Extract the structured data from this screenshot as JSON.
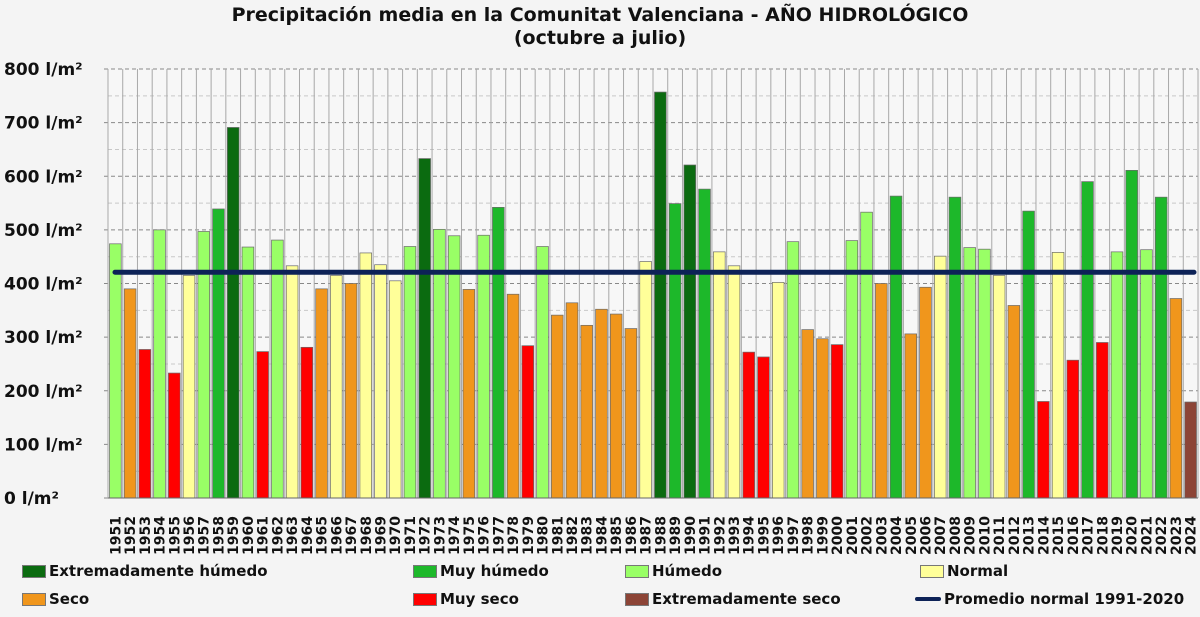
{
  "chart_data": {
    "type": "bar",
    "title": "Precipitación media en la Comunitat Valenciana - AÑO HIDROLÓGICO",
    "subtitle": "(octubre a julio)",
    "xlabel": "",
    "ylabel": "",
    "ylim": [
      0,
      800
    ],
    "yticks": [
      0,
      100,
      200,
      300,
      400,
      500,
      600,
      700,
      800
    ],
    "ytick_unit": " l/m²",
    "grid": true,
    "legend_placement": "bottom",
    "reference_line": {
      "name": "Promedio normal 1991-2020",
      "value": 421,
      "color": "#0d2257"
    },
    "classes": {
      "EH": {
        "name": "Extremadamente húmedo",
        "color": "#0b6b10"
      },
      "MH": {
        "name": "Muy húmedo",
        "color": "#1db82a"
      },
      "H": {
        "name": "Húmedo",
        "color": "#99ff66"
      },
      "N": {
        "name": "Normal",
        "color": "#ffff99"
      },
      "S": {
        "name": "Seco",
        "color": "#f0961c"
      },
      "MS": {
        "name": "Muy seco",
        "color": "#ff0000"
      },
      "ES": {
        "name": "Extremadamente seco",
        "color": "#8c4436"
      }
    },
    "legend_order": [
      "EH",
      "MH",
      "H",
      "N",
      "S",
      "MS",
      "ES"
    ],
    "categories": [
      "1951",
      "1952",
      "1953",
      "1954",
      "1955",
      "1956",
      "1957",
      "1958",
      "1959",
      "1960",
      "1961",
      "1962",
      "1963",
      "1964",
      "1965",
      "1966",
      "1967",
      "1968",
      "1969",
      "1970",
      "1971",
      "1972",
      "1973",
      "1974",
      "1975",
      "1976",
      "1977",
      "1978",
      "1979",
      "1980",
      "1981",
      "1982",
      "1983",
      "1984",
      "1985",
      "1986",
      "1987",
      "1988",
      "1989",
      "1990",
      "1991",
      "1992",
      "1993",
      "1994",
      "1995",
      "1996",
      "1997",
      "1998",
      "1999",
      "2000",
      "2001",
      "2002",
      "2003",
      "2004",
      "2005",
      "2006",
      "2007",
      "2008",
      "2009",
      "2010",
      "2011",
      "2012",
      "2013",
      "2014",
      "2015",
      "2016",
      "2017",
      "2018",
      "2019",
      "2020",
      "2021",
      "2022",
      "2023",
      "2024"
    ],
    "values": [
      474,
      390,
      277,
      500,
      233,
      415,
      497,
      539,
      691,
      468,
      273,
      481,
      433,
      281,
      390,
      415,
      400,
      457,
      435,
      405,
      469,
      633,
      501,
      489,
      389,
      490,
      542,
      380,
      284,
      469,
      341,
      364,
      322,
      352,
      343,
      316,
      441,
      757,
      549,
      621,
      576,
      459,
      433,
      272,
      263,
      402,
      478,
      314,
      297,
      286,
      480,
      533,
      400,
      563,
      306,
      393,
      451,
      561,
      467,
      464,
      415,
      359,
      535,
      180,
      458,
      257,
      590,
      290,
      459,
      611,
      463,
      561,
      372,
      179
    ],
    "class_of_bar": [
      "H",
      "S",
      "MS",
      "H",
      "MS",
      "N",
      "H",
      "MH",
      "EH",
      "H",
      "MS",
      "H",
      "N",
      "MS",
      "S",
      "N",
      "S",
      "N",
      "N",
      "N",
      "H",
      "EH",
      "H",
      "H",
      "S",
      "H",
      "MH",
      "S",
      "MS",
      "H",
      "S",
      "S",
      "S",
      "S",
      "S",
      "S",
      "N",
      "EH",
      "MH",
      "EH",
      "MH",
      "N",
      "N",
      "MS",
      "MS",
      "N",
      "H",
      "S",
      "S",
      "MS",
      "H",
      "H",
      "S",
      "MH",
      "S",
      "S",
      "N",
      "MH",
      "H",
      "H",
      "N",
      "S",
      "MH",
      "MS",
      "N",
      "MS",
      "MH",
      "MS",
      "H",
      "MH",
      "H",
      "MH",
      "S",
      "ES"
    ]
  }
}
